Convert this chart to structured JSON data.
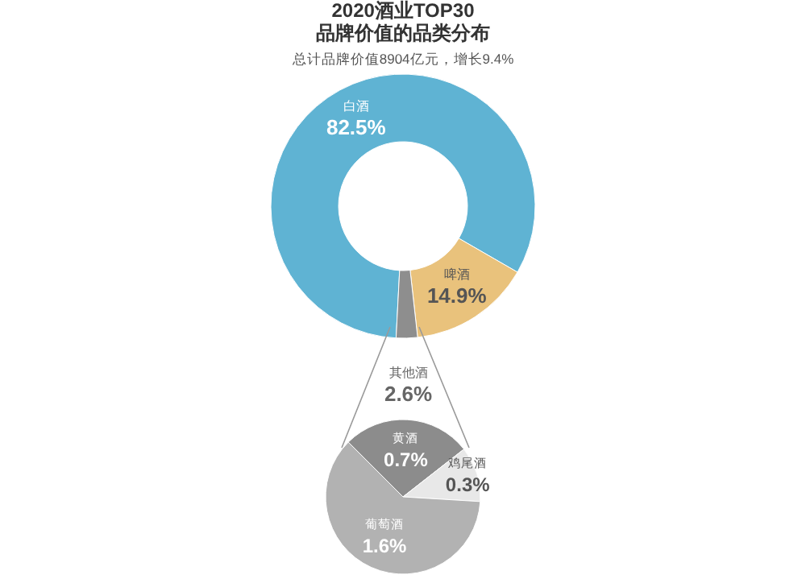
{
  "chart_data": [
    {
      "type": "donut",
      "title": "2020酒业TOP30\n品牌价值的品类分布",
      "subtitle": "总计品牌价值8904亿元，增长9.4%",
      "categories": [
        "白酒",
        "啤酒",
        "其他酒"
      ],
      "values": [
        82.5,
        14.9,
        2.6
      ],
      "colors": [
        "#5fb3d3",
        "#e9c27c",
        "#8e8e8e"
      ],
      "value_labels": [
        "82.5%",
        "14.9%",
        "2.6%"
      ]
    },
    {
      "type": "pie",
      "categories": [
        "黄酒",
        "鸡尾酒",
        "葡萄酒"
      ],
      "values": [
        0.7,
        0.3,
        1.6
      ],
      "colors": [
        "#8c8c8c",
        "#e8e8e8",
        "#b2b2b2"
      ],
      "value_labels": [
        "0.7%",
        "0.3%",
        "1.6%"
      ]
    }
  ]
}
